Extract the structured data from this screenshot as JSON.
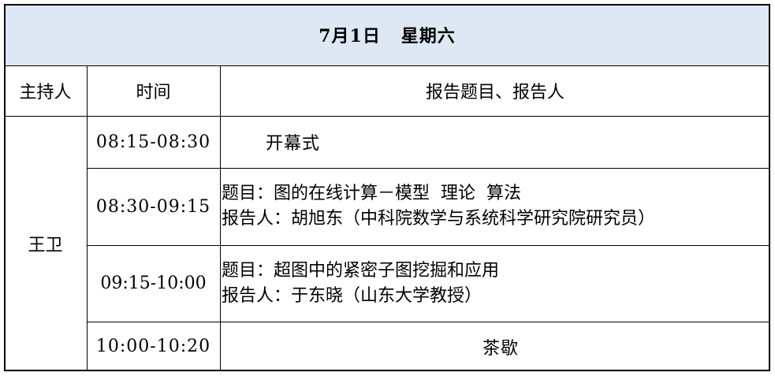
{
  "title": "7月1日   星期六",
  "header_color": "#dde8f4",
  "columns": [
    "主持人",
    "时间",
    "报告题目、报告人"
  ],
  "host": "王卫",
  "rows": [
    {
      "time": "08:15-08:30",
      "lines": [
        "开幕式"
      ]
    },
    {
      "time": "08:30-09:15",
      "lines": [
        "题目：图的在线计算－模型  理论  算法",
        "报告人：胡旭东（中科院数学与系统科学研究院研究员）"
      ]
    },
    {
      "time": "09:15-10:00",
      "lines": [
        "题目：超图中的紧密子图挖掘和应用",
        "报告人：于东晓（山东大学教授）"
      ]
    },
    {
      "time": "10:00-10:20",
      "lines": [
        "茶歇"
      ]
    }
  ]
}
